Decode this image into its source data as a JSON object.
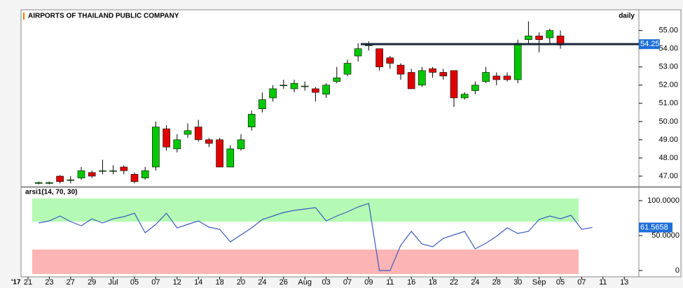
{
  "chart_data": [
    {
      "type": "candlestick",
      "title": "AIRPORTS OF THAILAND PUBLIC COMPANY",
      "subtitle": "daily",
      "year_label": "'17",
      "categories": [
        "21",
        null,
        "23",
        null,
        "27",
        null,
        "29",
        null,
        "Jul",
        null,
        "05",
        null,
        "07",
        null,
        "12",
        null,
        "14",
        null,
        "18",
        null,
        "20",
        null,
        "24",
        null,
        "26",
        null,
        "Aug",
        null,
        "03",
        null,
        "07",
        null,
        "09",
        null,
        "11",
        null,
        "16",
        null,
        "18",
        null,
        "22",
        null,
        "24",
        null,
        "28",
        null,
        "30",
        null,
        "Sep",
        null,
        "05",
        null,
        "07",
        null,
        "11",
        null,
        "13",
        null
      ],
      "open": [
        null,
        46.6,
        46.6,
        47.0,
        46.8,
        46.9,
        47.2,
        47.3,
        47.3,
        47.5,
        47.1,
        46.9,
        47.5,
        49.6,
        48.5,
        49.3,
        49.7,
        49.0,
        49.0,
        47.5,
        48.5,
        49.7,
        50.7,
        51.3,
        52.0,
        51.8,
        51.95,
        51.8,
        51.5,
        52.2,
        52.6,
        53.6,
        54.2,
        54.0,
        53.5,
        53.1,
        52.7,
        52.0,
        52.9,
        52.7,
        52.8,
        51.3,
        51.7,
        52.2,
        52.5,
        52.5,
        52.3,
        54.5,
        54.7,
        54.6,
        54.7,
        null,
        null,
        null,
        null,
        null,
        null,
        null
      ],
      "high": [
        null,
        46.7,
        46.7,
        47.05,
        47.0,
        47.5,
        47.3,
        47.9,
        47.6,
        47.6,
        47.2,
        47.5,
        50.0,
        49.8,
        49.3,
        49.9,
        50.1,
        49.1,
        49.1,
        48.7,
        49.3,
        50.6,
        51.6,
        52.0,
        52.3,
        52.3,
        52.2,
        51.9,
        52.1,
        53.0,
        53.4,
        54.3,
        54.4,
        54.0,
        53.6,
        53.2,
        52.9,
        53.0,
        53.0,
        52.9,
        52.8,
        51.6,
        52.2,
        53.0,
        52.7,
        52.7,
        54.5,
        55.5,
        54.9,
        55.1,
        55.0,
        null,
        null,
        null,
        null,
        null,
        null,
        null
      ],
      "low": [
        null,
        46.55,
        46.55,
        46.6,
        46.6,
        46.8,
        46.9,
        47.1,
        47.1,
        47.1,
        46.6,
        46.8,
        47.3,
        48.4,
        48.3,
        49.1,
        48.9,
        48.6,
        47.5,
        47.5,
        48.4,
        49.5,
        50.5,
        51.1,
        51.8,
        51.6,
        51.7,
        51.1,
        51.3,
        52.1,
        52.5,
        53.3,
        53.9,
        52.8,
        52.9,
        52.3,
        51.8,
        51.9,
        52.4,
        52.3,
        50.8,
        51.2,
        51.5,
        52.1,
        52.0,
        52.2,
        52.1,
        54.2,
        53.8,
        54.2,
        54.0,
        null,
        null,
        null,
        null,
        null,
        null,
        null
      ],
      "close": [
        null,
        46.65,
        46.65,
        46.7,
        46.8,
        47.3,
        47.0,
        47.3,
        47.3,
        47.3,
        46.7,
        47.3,
        49.7,
        48.6,
        49.0,
        49.5,
        49.0,
        48.8,
        47.5,
        48.5,
        49.0,
        50.4,
        51.2,
        51.8,
        52.0,
        52.1,
        51.95,
        51.6,
        52.0,
        52.4,
        53.2,
        54.0,
        54.2,
        53.0,
        53.2,
        52.6,
        51.8,
        52.8,
        52.7,
        52.5,
        51.3,
        51.5,
        52.0,
        52.7,
        52.3,
        52.3,
        54.3,
        54.7,
        54.5,
        55.0,
        54.2,
        null,
        null,
        null,
        null,
        null,
        null,
        null
      ],
      "up_color": "#00c800",
      "down_color": "#e00000",
      "hline": {
        "value": 54.25,
        "color": "#17263a"
      },
      "ylim": [
        46.5,
        56.1
      ],
      "yticks": [
        {
          "value": 47,
          "label": "47.00"
        },
        {
          "value": 48,
          "label": "48.00"
        },
        {
          "value": 49,
          "label": "49.00"
        },
        {
          "value": 50,
          "label": "50.00"
        },
        {
          "value": 51,
          "label": "51.00"
        },
        {
          "value": 52,
          "label": "52.00"
        },
        {
          "value": 53,
          "label": "53.00"
        },
        {
          "value": 54,
          "label": "54.00"
        },
        {
          "value": 55,
          "label": "55.00"
        }
      ]
    },
    {
      "type": "line",
      "title": "arsi1(14, 70, 30)",
      "color": "#3b5bbf",
      "values": [
        null,
        68,
        71,
        78,
        70,
        64,
        74,
        68,
        74,
        77,
        82,
        54,
        66,
        82,
        61,
        66,
        71,
        62,
        59,
        41,
        51,
        61,
        73,
        78,
        83,
        86,
        88,
        90,
        71,
        78,
        84,
        91,
        96,
        0,
        0,
        36,
        56,
        38,
        34,
        46,
        51,
        56,
        31,
        39,
        49,
        61,
        53,
        56,
        73,
        78,
        74,
        79,
        59,
        61.5658,
        null,
        null,
        null,
        null
      ],
      "upper_band": [
        70,
        103
      ],
      "lower_band": [
        -5,
        30
      ],
      "upper_color": "#b4fab4",
      "lower_color": "#fdb4b4",
      "ylim": [
        -8,
        117
      ],
      "yticks": [
        {
          "value": 0,
          "label": "0"
        },
        {
          "value": 50,
          "label": "50.0000"
        },
        {
          "value": 100,
          "label": "100.0000"
        }
      ]
    }
  ]
}
